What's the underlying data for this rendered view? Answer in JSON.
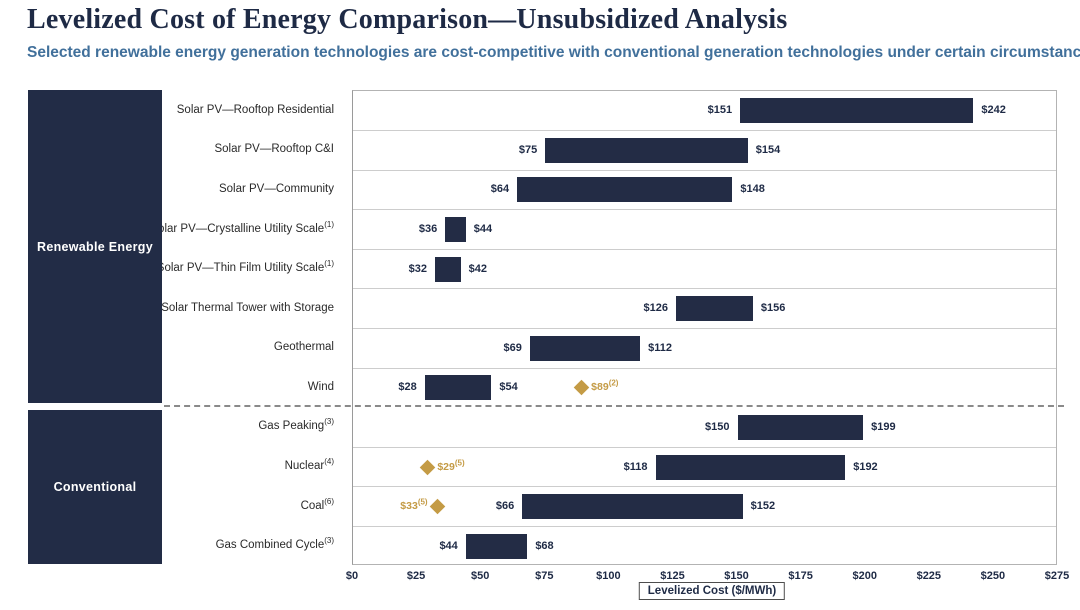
{
  "page": {
    "title": "Levelized Cost of Energy Comparison—Unsubsidized Analysis",
    "subtitle": "Selected renewable energy generation technologies are cost-competitive with conventional generation technologies under certain circumstances"
  },
  "colors": {
    "navy": "#222C46",
    "gold": "#C49B45",
    "subtitle_blue": "#41709B",
    "gridline": "#CDCDCD"
  },
  "chart_data": {
    "type": "bar",
    "variant": "horizontal-range-bars",
    "title": "Levelized Cost of Energy Comparison—Unsubsidized Analysis",
    "xlabel": "Levelized Cost ($/MWh)",
    "xlim": [
      0,
      275
    ],
    "grid": "row-separators",
    "xticks": [
      {
        "value": 0,
        "label": "$0"
      },
      {
        "value": 25,
        "label": "$25"
      },
      {
        "value": 50,
        "label": "$50"
      },
      {
        "value": 75,
        "label": "$75"
      },
      {
        "value": 100,
        "label": "$100"
      },
      {
        "value": 125,
        "label": "$125"
      },
      {
        "value": 150,
        "label": "$150"
      },
      {
        "value": 175,
        "label": "$175"
      },
      {
        "value": 200,
        "label": "$200"
      },
      {
        "value": 225,
        "label": "$225"
      },
      {
        "value": 250,
        "label": "$250"
      },
      {
        "value": 275,
        "label": "$275"
      }
    ],
    "groups": [
      {
        "name": "Renewable Energy",
        "rows": [
          {
            "label": "Solar PV—Rooftop Residential",
            "sup": "",
            "low": 151,
            "high": 242,
            "low_label": "$151",
            "high_label": "$242"
          },
          {
            "label": "Solar PV—Rooftop C&I",
            "sup": "",
            "low": 75,
            "high": 154,
            "low_label": "$75",
            "high_label": "$154"
          },
          {
            "label": "Solar PV—Community",
            "sup": "",
            "low": 64,
            "high": 148,
            "low_label": "$64",
            "high_label": "$148"
          },
          {
            "label": "Solar PV—Crystalline Utility Scale",
            "sup": "(1)",
            "low": 36,
            "high": 44,
            "low_label": "$36",
            "high_label": "$44"
          },
          {
            "label": "Solar PV—Thin Film Utility Scale",
            "sup": "(1)",
            "low": 32,
            "high": 42,
            "low_label": "$32",
            "high_label": "$42"
          },
          {
            "label": "Solar Thermal Tower with Storage",
            "sup": "",
            "low": 126,
            "high": 156,
            "low_label": "$126",
            "high_label": "$156"
          },
          {
            "label": "Geothermal",
            "sup": "",
            "low": 69,
            "high": 112,
            "low_label": "$69",
            "high_label": "$112"
          },
          {
            "label": "Wind",
            "sup": "",
            "low": 28,
            "high": 54,
            "low_label": "$28",
            "high_label": "$54",
            "marker": {
              "value": 89,
              "label": "$89",
              "sup": "(2)",
              "side": "right"
            }
          }
        ]
      },
      {
        "name": "Conventional",
        "rows": [
          {
            "label": "Gas Peaking",
            "sup": "(3)",
            "low": 150,
            "high": 199,
            "low_label": "$150",
            "high_label": "$199"
          },
          {
            "label": "Nuclear",
            "sup": "(4)",
            "low": 118,
            "high": 192,
            "low_label": "$118",
            "high_label": "$192",
            "marker": {
              "value": 29,
              "label": "$29",
              "sup": "(5)",
              "side": "right"
            }
          },
          {
            "label": "Coal",
            "sup": "(6)",
            "low": 66,
            "high": 152,
            "low_label": "$66",
            "high_label": "$152",
            "marker": {
              "value": 33,
              "label": "$33",
              "sup": "(5)",
              "side": "left"
            }
          },
          {
            "label": "Gas Combined Cycle",
            "sup": "(3)",
            "low": 44,
            "high": 68,
            "low_label": "$44",
            "high_label": "$68"
          }
        ]
      }
    ]
  }
}
